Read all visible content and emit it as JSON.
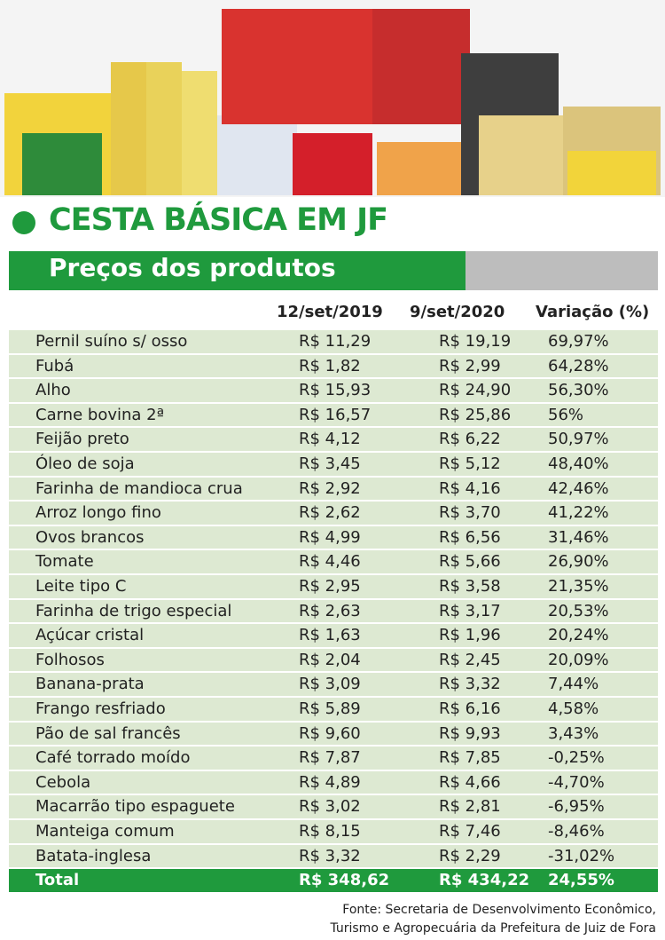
{
  "header": {
    "title": "CESTA BÁSICA EM JF",
    "subtitle": "Preços dos produtos"
  },
  "table": {
    "columns": [
      "12/set/2019",
      "9/set/2020",
      "Variação (%)"
    ],
    "rows": [
      [
        "Pernil suíno s/ osso",
        "R$ 11,29",
        "R$ 19,19",
        "69,97%"
      ],
      [
        "Fubá",
        "R$ 1,82",
        "R$ 2,99",
        "64,28%"
      ],
      [
        "Alho",
        "R$ 15,93",
        "R$ 24,90",
        "56,30%"
      ],
      [
        "Carne bovina 2ª",
        "R$ 16,57",
        "R$ 25,86",
        "56%"
      ],
      [
        "Feijão preto",
        "R$ 4,12",
        "R$ 6,22",
        "50,97%"
      ],
      [
        "Óleo de soja",
        "R$ 3,45",
        "R$ 5,12",
        "48,40%"
      ],
      [
        "Farinha de mandioca crua",
        "R$ 2,92",
        "R$ 4,16",
        "42,46%"
      ],
      [
        "Arroz longo fino",
        "R$ 2,62",
        "R$ 3,70",
        "41,22%"
      ],
      [
        "Ovos brancos",
        "R$ 4,99",
        "R$ 6,56",
        "31,46%"
      ],
      [
        "Tomate",
        "R$ 4,46",
        "R$ 5,66",
        "26,90%"
      ],
      [
        "Leite tipo C",
        "R$ 2,95",
        "R$ 3,58",
        "21,35%"
      ],
      [
        "Farinha de trigo especial",
        "R$ 2,63",
        "R$ 3,17",
        "20,53%"
      ],
      [
        "Açúcar cristal",
        "R$ 1,63",
        "R$ 1,96",
        "20,24%"
      ],
      [
        "Folhosos",
        "R$ 2,04",
        "R$ 2,45",
        "20,09%"
      ],
      [
        "Banana-prata",
        "R$ 3,09",
        "R$ 3,32",
        "7,44%"
      ],
      [
        "Frango resfriado",
        "R$ 5,89",
        "R$ 6,16",
        "4,58%"
      ],
      [
        "Pão de sal francês",
        "R$ 9,60",
        "R$ 9,93",
        "3,43%"
      ],
      [
        "Café torrado moído",
        "R$ 7,87",
        "R$ 7,85",
        "-0,25%"
      ],
      [
        "Cebola",
        "R$ 4,89",
        "R$ 4,66",
        "-4,70%"
      ],
      [
        "Macarrão tipo espaguete",
        "R$ 3,02",
        "R$ 2,81",
        "-6,95%"
      ],
      [
        "Manteiga comum",
        "R$ 8,15",
        "R$ 7,46",
        "-8,46%"
      ],
      [
        "Batata-inglesa",
        "R$ 3,32",
        "R$ 2,29",
        "-31,02%"
      ]
    ],
    "total": [
      "Total",
      "R$ 348,62",
      "R$ 434,22",
      "24,55%"
    ]
  },
  "source": [
    "Fonte: Secretaria de Desenvolvimento Econômico,",
    "Turismo e Agropecuária da Prefeitura de Juiz de Fora"
  ]
}
